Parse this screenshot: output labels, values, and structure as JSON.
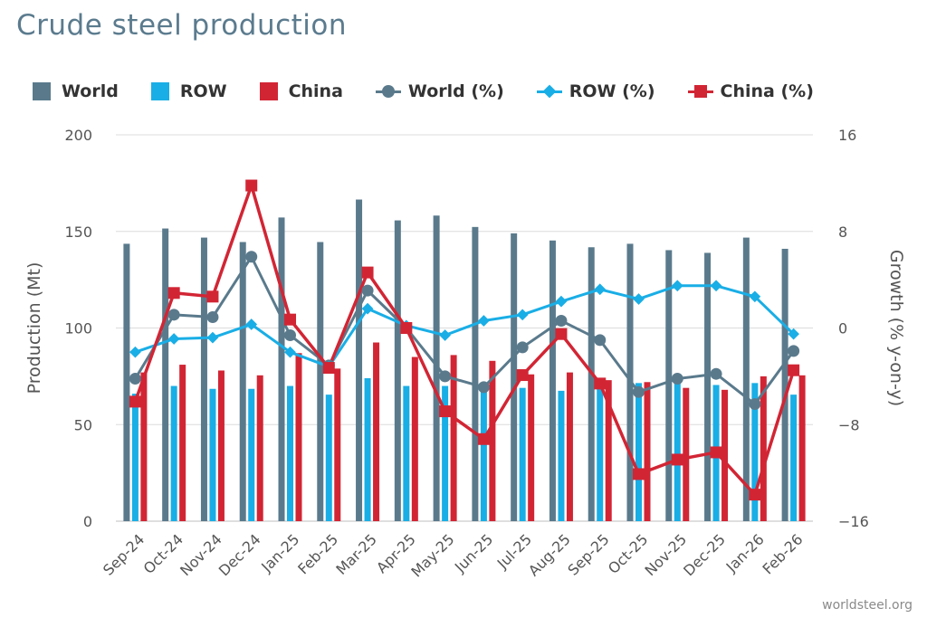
{
  "title": "Crude steel production",
  "source": "worldsteel.org",
  "colors": {
    "world": "#5a7a8c",
    "row": "#19aee6",
    "china": "#d22534",
    "grid": "#dcdcdc",
    "text": "#555555"
  },
  "legend": [
    {
      "label": "World",
      "kind": "box",
      "color": "#5a7a8c"
    },
    {
      "label": "ROW",
      "kind": "box",
      "color": "#19aee6"
    },
    {
      "label": "China",
      "kind": "box",
      "color": "#d22534"
    },
    {
      "label": "World (%)",
      "kind": "circle",
      "color": "#5a7a8c"
    },
    {
      "label": "ROW (%)",
      "kind": "diamond",
      "color": "#19aee6"
    },
    {
      "label": "China (%)",
      "kind": "square",
      "color": "#d22534"
    }
  ],
  "chart_data": {
    "type": "bar",
    "categories": [
      "Sep-24",
      "Oct-24",
      "Nov-24",
      "Dec-24",
      "Jan-25",
      "Feb-25",
      "Mar-25",
      "Apr-25",
      "May-25",
      "Jun-25",
      "Jul-25",
      "Aug-25",
      "Sep-25",
      "Oct-25",
      "Nov-25",
      "Dec-25",
      "Jan-26",
      "Feb-26"
    ],
    "ylabel": "Production (Mt)",
    "y2label": "Growth (% y-on-y)",
    "ylim": [
      0,
      200
    ],
    "yticks": [
      "0",
      "50",
      "100",
      "150",
      "200"
    ],
    "y2lim": [
      -16,
      16
    ],
    "y2ticks": [
      "−16",
      "−8",
      "0",
      "8",
      "16"
    ],
    "grid": true,
    "legend_position": "top",
    "bar_series": [
      {
        "name": "World",
        "values": [
          143.6,
          151.5,
          146.8,
          144.5,
          157.2,
          144.5,
          166.5,
          155.7,
          158.2,
          152.3,
          149.0,
          145.3,
          141.8,
          143.6,
          140.3,
          138.9,
          146.8,
          141.0
        ]
      },
      {
        "name": "ROW",
        "values": [
          66.0,
          70.0,
          68.5,
          68.5,
          70.0,
          65.5,
          74.0,
          70.0,
          70.0,
          69.0,
          69.0,
          67.5,
          69.0,
          71.5,
          71.5,
          70.5,
          71.5,
          65.5
        ]
      },
      {
        "name": "China",
        "values": [
          77.0,
          81.0,
          78.0,
          75.5,
          87.0,
          79.0,
          92.5,
          85.0,
          86.0,
          83.0,
          76.0,
          77.0,
          73.0,
          72.0,
          69.0,
          68.0,
          75.0,
          75.5
        ]
      }
    ],
    "line_series": [
      {
        "name": "World (%)",
        "values": [
          -4.2,
          1.1,
          0.9,
          5.9,
          -0.6,
          -3.1,
          3.1,
          0.0,
          -4.0,
          -4.9,
          -1.6,
          0.6,
          -1.0,
          -5.3,
          -4.2,
          -3.8,
          -6.3,
          -1.9
        ]
      },
      {
        "name": "ROW (%)",
        "values": [
          -2.0,
          -0.9,
          -0.8,
          0.3,
          -2.0,
          -3.2,
          1.6,
          0.2,
          -0.6,
          0.6,
          1.1,
          2.2,
          3.2,
          2.4,
          3.5,
          3.5,
          2.6,
          -0.5
        ]
      },
      {
        "name": "China (%)",
        "values": [
          -6.1,
          2.9,
          2.6,
          11.8,
          0.7,
          -3.3,
          4.6,
          0.0,
          -6.9,
          -9.2,
          -3.9,
          -0.5,
          -4.6,
          -12.1,
          -10.9,
          -10.3,
          -13.8,
          -3.5
        ]
      }
    ]
  }
}
